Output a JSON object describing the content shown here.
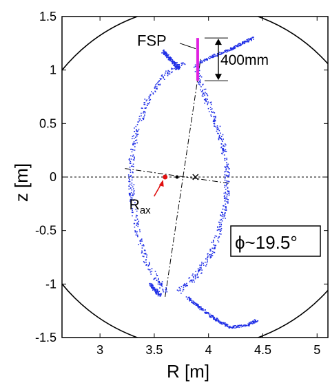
{
  "chart_data": {
    "type": "scatter",
    "xlabel": "R [m]",
    "ylabel": "z [m]",
    "xlim": [
      2.65,
      5.1
    ],
    "ylim": [
      -1.5,
      1.5
    ],
    "xticks": [
      3,
      3.5,
      4,
      4.5,
      5
    ],
    "yticks": [
      -1.5,
      -1,
      -0.5,
      0,
      0.5,
      1,
      1.5
    ],
    "xtick_labels": [
      "3",
      "3.5",
      "4",
      "4.5",
      "5"
    ],
    "ytick_labels": [
      "-1.5",
      "-1",
      "-0.5",
      "0",
      "0.5",
      "1",
      "1.5"
    ],
    "grid": false,
    "point_color": "#1f2ee6",
    "fsp_color": "#e020e0",
    "rax_color": "#e01010",
    "series": [
      {
        "values_description_free": true,
        "right_boundary": [
          [
            3.88,
            1.05
          ],
          [
            3.95,
            0.8
          ],
          [
            4.05,
            0.55
          ],
          [
            4.13,
            0.3
          ],
          [
            4.17,
            0.05
          ],
          [
            4.16,
            -0.2
          ],
          [
            4.11,
            -0.45
          ],
          [
            4.02,
            -0.7
          ],
          [
            3.88,
            -0.92
          ],
          [
            3.72,
            -1.06
          ]
        ],
        "left_boundary": [
          [
            3.62,
            -1.08
          ],
          [
            3.45,
            -0.85
          ],
          [
            3.35,
            -0.55
          ],
          [
            3.29,
            -0.2
          ],
          [
            3.28,
            0.1
          ],
          [
            3.32,
            0.4
          ],
          [
            3.42,
            0.7
          ],
          [
            3.58,
            0.95
          ],
          [
            3.76,
            1.08
          ]
        ],
        "top_leg": [
          [
            3.72,
            1.02
          ],
          [
            3.68,
            1.07
          ],
          [
            3.62,
            1.13
          ],
          [
            3.57,
            1.18
          ]
        ],
        "top_leg_right": [
          [
            3.9,
            1.07
          ],
          [
            4.05,
            1.14
          ],
          [
            4.2,
            1.2
          ],
          [
            4.3,
            1.25
          ],
          [
            4.4,
            1.3
          ]
        ],
        "bottom_leg": [
          [
            3.55,
            -1.1
          ],
          [
            3.5,
            -1.05
          ],
          [
            3.46,
            -1.0
          ]
        ],
        "bottom_leg_right": [
          [
            3.8,
            -1.12
          ],
          [
            3.9,
            -1.2
          ],
          [
            4.0,
            -1.28
          ],
          [
            4.1,
            -1.35
          ],
          [
            4.2,
            -1.4
          ],
          [
            4.35,
            -1.38
          ],
          [
            4.45,
            -1.33
          ]
        ]
      }
    ],
    "wall_arc_center": [
      3.9,
      0
    ],
    "wall_arc_radius": 1.6,
    "axis_line_1": [
      [
        3.6,
        -1.12
      ],
      [
        3.93,
        1.12
      ]
    ],
    "axis_line_2": [
      [
        3.23,
        0.08
      ],
      [
        4.2,
        -0.06
      ]
    ],
    "rax_point": [
      3.6,
      0
    ],
    "center_dot": [
      3.71,
      0
    ],
    "x_marker": [
      3.88,
      0
    ],
    "fsp_line": {
      "r": 3.9,
      "z0": 0.9,
      "z1": 1.3
    },
    "dim_top": 1.3,
    "dim_bottom": 0.9,
    "annotations": {
      "fsp": "FSP",
      "dimension": "400mm",
      "rax_main": "R",
      "rax_sub": "ax",
      "phi": "ϕ~19.5°"
    }
  }
}
